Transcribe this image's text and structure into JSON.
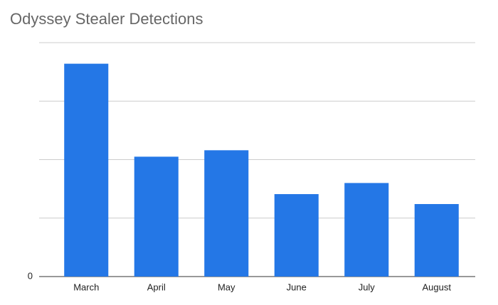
{
  "chart_data": {
    "type": "bar",
    "title": "Odyssey Stealer Detections",
    "categories": [
      "March",
      "April",
      "May",
      "June",
      "July",
      "August"
    ],
    "values": [
      3.64,
      2.05,
      2.16,
      1.41,
      1.6,
      1.24
    ],
    "color": "#2477e6",
    "ylim": [
      0,
      4
    ],
    "yticks": [
      0
    ],
    "grid_lines": [
      0,
      1,
      2,
      3,
      4
    ],
    "grid": true
  }
}
